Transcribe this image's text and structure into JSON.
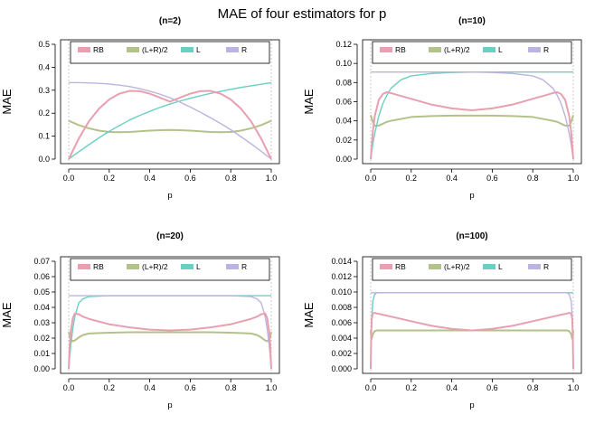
{
  "title": "MAE of four estimators for p",
  "colors": {
    "RB": "#E8A0B0",
    "(L+R)/2": "#B3C28A",
    "L": "#6CCFC3",
    "R": "#BDB3E0"
  },
  "chart_data": [
    {
      "type": "line",
      "title": "(n=2)",
      "xlabel": "p",
      "ylabel": "MAE",
      "xlim": [
        0,
        1
      ],
      "ylim": [
        0,
        0.5
      ],
      "xticks": [
        "0.0",
        "0.2",
        "0.4",
        "0.6",
        "0.8",
        "1.0"
      ],
      "yticks": [
        "0.0",
        "0.1",
        "0.2",
        "0.3",
        "0.4",
        "0.5"
      ],
      "legend": [
        "RB",
        "(L+R)/2",
        "L",
        "R"
      ],
      "legend_position": "top",
      "x": [
        0,
        0.05,
        0.1,
        0.15,
        0.2,
        0.25,
        0.3,
        0.35,
        0.4,
        0.45,
        0.5,
        0.55,
        0.6,
        0.65,
        0.7,
        0.75,
        0.8,
        0.85,
        0.9,
        0.95,
        1
      ],
      "series": [
        {
          "name": "RB",
          "values": [
            0,
            0.09,
            0.165,
            0.22,
            0.26,
            0.285,
            0.297,
            0.296,
            0.285,
            0.268,
            0.25,
            0.268,
            0.285,
            0.296,
            0.297,
            0.285,
            0.26,
            0.22,
            0.165,
            0.09,
            0
          ]
        },
        {
          "name": "(L+R)/2",
          "values": [
            0.167,
            0.148,
            0.134,
            0.124,
            0.118,
            0.117,
            0.118,
            0.121,
            0.124,
            0.126,
            0.127,
            0.126,
            0.124,
            0.121,
            0.118,
            0.117,
            0.118,
            0.124,
            0.134,
            0.148,
            0.167
          ]
        },
        {
          "name": "L",
          "values": [
            0,
            0.032,
            0.063,
            0.093,
            0.121,
            0.146,
            0.17,
            0.19,
            0.208,
            0.225,
            0.24,
            0.253,
            0.265,
            0.276,
            0.286,
            0.295,
            0.304,
            0.312,
            0.319,
            0.326,
            0.333
          ]
        },
        {
          "name": "R",
          "values": [
            0.333,
            0.333,
            0.332,
            0.33,
            0.327,
            0.322,
            0.316,
            0.307,
            0.296,
            0.283,
            0.267,
            0.248,
            0.227,
            0.204,
            0.18,
            0.155,
            0.128,
            0.098,
            0.067,
            0.034,
            0
          ]
        }
      ]
    },
    {
      "type": "line",
      "title": "(n=10)",
      "xlabel": "p",
      "ylabel": "MAE",
      "xlim": [
        0,
        1
      ],
      "ylim": [
        0,
        0.12
      ],
      "xticks": [
        "0.0",
        "0.2",
        "0.4",
        "0.6",
        "0.8",
        "1.0"
      ],
      "yticks": [
        "0.00",
        "0.02",
        "0.04",
        "0.06",
        "0.08",
        "0.10",
        "0.12"
      ],
      "legend": [
        "RB",
        "(L+R)/2",
        "L",
        "R"
      ],
      "legend_position": "top",
      "x": [
        0,
        0.01,
        0.02,
        0.04,
        0.06,
        0.08,
        0.1,
        0.15,
        0.2,
        0.3,
        0.4,
        0.5,
        0.6,
        0.7,
        0.8,
        0.85,
        0.9,
        0.92,
        0.94,
        0.96,
        0.98,
        0.99,
        1
      ],
      "series": [
        {
          "name": "RB",
          "values": [
            0,
            0.028,
            0.045,
            0.062,
            0.068,
            0.07,
            0.069,
            0.066,
            0.063,
            0.057,
            0.053,
            0.051,
            0.053,
            0.057,
            0.063,
            0.066,
            0.069,
            0.07,
            0.068,
            0.062,
            0.045,
            0.028,
            0
          ]
        },
        {
          "name": "(L+R)/2",
          "values": [
            0.046,
            0.039,
            0.035,
            0.035,
            0.037,
            0.039,
            0.04,
            0.042,
            0.044,
            0.045,
            0.0455,
            0.0455,
            0.0455,
            0.045,
            0.044,
            0.042,
            0.04,
            0.039,
            0.037,
            0.035,
            0.035,
            0.039,
            0.046
          ]
        },
        {
          "name": "L",
          "values": [
            0,
            0.015,
            0.027,
            0.045,
            0.058,
            0.067,
            0.074,
            0.083,
            0.087,
            0.0895,
            0.0905,
            0.091,
            0.091,
            0.091,
            0.091,
            0.091,
            0.091,
            0.091,
            0.091,
            0.091,
            0.091,
            0.091,
            0.091
          ]
        },
        {
          "name": "R",
          "values": [
            0.091,
            0.091,
            0.091,
            0.091,
            0.091,
            0.091,
            0.091,
            0.091,
            0.091,
            0.091,
            0.091,
            0.091,
            0.0905,
            0.0895,
            0.087,
            0.083,
            0.074,
            0.067,
            0.058,
            0.045,
            0.027,
            0.015,
            0
          ]
        }
      ]
    },
    {
      "type": "line",
      "title": "(n=20)",
      "xlabel": "p",
      "ylabel": "MAE",
      "xlim": [
        0,
        1
      ],
      "ylim": [
        0,
        0.07
      ],
      "xticks": [
        "0.0",
        "0.2",
        "0.4",
        "0.6",
        "0.8",
        "1.0"
      ],
      "yticks": [
        "0.00",
        "0.01",
        "0.02",
        "0.03",
        "0.04",
        "0.05",
        "0.06",
        "0.07"
      ],
      "legend": [
        "RB",
        "(L+R)/2",
        "L",
        "R"
      ],
      "legend_position": "top",
      "x": [
        0,
        0.005,
        0.01,
        0.02,
        0.03,
        0.05,
        0.07,
        0.1,
        0.2,
        0.3,
        0.4,
        0.5,
        0.6,
        0.7,
        0.8,
        0.9,
        0.93,
        0.95,
        0.97,
        0.98,
        0.99,
        0.995,
        1
      ],
      "series": [
        {
          "name": "RB",
          "values": [
            0,
            0.015,
            0.024,
            0.033,
            0.036,
            0.0355,
            0.034,
            0.0325,
            0.029,
            0.027,
            0.0255,
            0.025,
            0.0255,
            0.027,
            0.029,
            0.0325,
            0.034,
            0.0355,
            0.036,
            0.033,
            0.024,
            0.015,
            0
          ]
        },
        {
          "name": "(L+R)/2",
          "values": [
            0.024,
            0.021,
            0.019,
            0.018,
            0.0185,
            0.0205,
            0.022,
            0.023,
            0.0235,
            0.0238,
            0.0238,
            0.0238,
            0.0238,
            0.0238,
            0.0235,
            0.023,
            0.022,
            0.0205,
            0.0185,
            0.018,
            0.019,
            0.021,
            0.024
          ]
        },
        {
          "name": "L",
          "values": [
            0,
            0.008,
            0.015,
            0.026,
            0.034,
            0.043,
            0.0455,
            0.047,
            0.0476,
            0.0476,
            0.0476,
            0.0476,
            0.0476,
            0.0476,
            0.0476,
            0.0476,
            0.0476,
            0.0476,
            0.0476,
            0.0476,
            0.0476,
            0.0476,
            0.0476
          ]
        },
        {
          "name": "R",
          "values": [
            0.0476,
            0.0476,
            0.0476,
            0.0476,
            0.0476,
            0.0476,
            0.0476,
            0.0476,
            0.0476,
            0.0476,
            0.0476,
            0.0476,
            0.0476,
            0.0476,
            0.0476,
            0.047,
            0.0455,
            0.043,
            0.034,
            0.026,
            0.015,
            0.008,
            0
          ]
        }
      ]
    },
    {
      "type": "line",
      "title": "(n=100)",
      "xlabel": "p",
      "ylabel": "MAE",
      "xlim": [
        0,
        1
      ],
      "ylim": [
        0,
        0.014
      ],
      "xticks": [
        "0.0",
        "0.2",
        "0.4",
        "0.6",
        "0.8",
        "1.0"
      ],
      "yticks": [
        "0.000",
        "0.002",
        "0.004",
        "0.006",
        "0.008",
        "0.010",
        "0.012",
        "0.014"
      ],
      "legend": [
        "RB",
        "(L+R)/2",
        "L",
        "R"
      ],
      "legend_position": "top",
      "x": [
        0,
        0.002,
        0.005,
        0.01,
        0.02,
        0.03,
        0.05,
        0.1,
        0.2,
        0.3,
        0.4,
        0.5,
        0.6,
        0.7,
        0.8,
        0.9,
        0.95,
        0.97,
        0.98,
        0.99,
        0.995,
        0.998,
        1
      ],
      "series": [
        {
          "name": "RB",
          "values": [
            0,
            0.004,
            0.0065,
            0.0072,
            0.0073,
            0.0072,
            0.0071,
            0.0068,
            0.0062,
            0.0056,
            0.0052,
            0.005,
            0.0052,
            0.0056,
            0.0062,
            0.0068,
            0.0071,
            0.0072,
            0.0073,
            0.0072,
            0.0065,
            0.004,
            0
          ]
        },
        {
          "name": "(L+R)/2",
          "values": [
            0.005,
            0.0042,
            0.0039,
            0.0045,
            0.0049,
            0.005,
            0.005,
            0.005,
            0.005,
            0.005,
            0.005,
            0.005,
            0.005,
            0.005,
            0.005,
            0.005,
            0.005,
            0.005,
            0.0049,
            0.0045,
            0.0039,
            0.0042,
            0.005
          ]
        },
        {
          "name": "L",
          "values": [
            0,
            0.0035,
            0.0065,
            0.0088,
            0.0097,
            0.0099,
            0.0099,
            0.0099,
            0.0099,
            0.0099,
            0.0099,
            0.0099,
            0.0099,
            0.0099,
            0.0099,
            0.0099,
            0.0099,
            0.0099,
            0.0099,
            0.0099,
            0.0099,
            0.0099,
            0.0099
          ]
        },
        {
          "name": "R",
          "values": [
            0.0099,
            0.0099,
            0.0099,
            0.0099,
            0.0099,
            0.0099,
            0.0099,
            0.0099,
            0.0099,
            0.0099,
            0.0099,
            0.0099,
            0.0099,
            0.0099,
            0.0099,
            0.0099,
            0.0099,
            0.0099,
            0.0097,
            0.0088,
            0.0065,
            0.0035,
            0
          ]
        }
      ]
    }
  ]
}
